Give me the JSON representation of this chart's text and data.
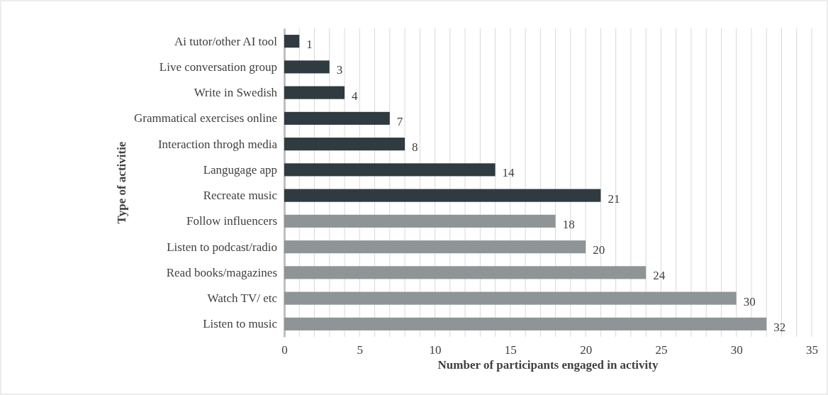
{
  "chart_data": {
    "type": "bar",
    "orientation": "horizontal",
    "xlabel": "Number of participants engaged in activity",
    "ylabel": "Type of activitie",
    "categories": [
      "Ai tutor/other AI tool",
      "Live conversation group",
      "Write in Swedish",
      "Grammatical exercises online",
      "Interaction throgh media",
      "Langugage app",
      "Recreate music",
      "Follow influencers",
      "Listen to podcast/radio",
      "Read books/magazines",
      "Watch TV/ etc",
      "Listen to music"
    ],
    "values": [
      1,
      3,
      4,
      7,
      8,
      14,
      21,
      18,
      20,
      24,
      30,
      32
    ],
    "colors": [
      "#2f3b40",
      "#2f3b40",
      "#2f3b40",
      "#2f3b40",
      "#2f3b40",
      "#2f3b40",
      "#2f3b40",
      "#8f9496",
      "#8f9496",
      "#8f9496",
      "#8f9496",
      "#8f9496"
    ],
    "xlim": [
      0,
      35
    ],
    "xticks": [
      0,
      {
        "value": 1,
        "label": null
      },
      {
        "value": 2,
        "label": null
      },
      {
        "value": 3,
        "label": null
      },
      {
        "value": 4,
        "label": null
      },
      5,
      {
        "value": 6,
        "label": null
      },
      {
        "value": 7,
        "label": null
      },
      {
        "value": 8,
        "label": null
      },
      {
        "value": 9,
        "label": null
      },
      10,
      {
        "value": 11,
        "label": null
      },
      {
        "value": 12,
        "label": null
      },
      {
        "value": 13,
        "label": null
      },
      {
        "value": 14,
        "label": null
      },
      15,
      {
        "value": 16,
        "label": null
      },
      {
        "value": 17,
        "label": null
      },
      {
        "value": 18,
        "label": null
      },
      {
        "value": 19,
        "label": null
      },
      20,
      {
        "value": 21,
        "label": null
      },
      {
        "value": 22,
        "label": null
      },
      {
        "value": 23,
        "label": null
      },
      {
        "value": 24,
        "label": null
      },
      25,
      {
        "value": 26,
        "label": null
      },
      {
        "value": 27,
        "label": null
      },
      {
        "value": 28,
        "label": null
      },
      {
        "value": 29,
        "label": null
      },
      30,
      {
        "value": 31,
        "label": null
      },
      {
        "value": 32,
        "label": null
      },
      {
        "value": 33,
        "label": null
      },
      {
        "value": 34,
        "label": null
      },
      35
    ],
    "grid": "x",
    "data_labels": true
  }
}
